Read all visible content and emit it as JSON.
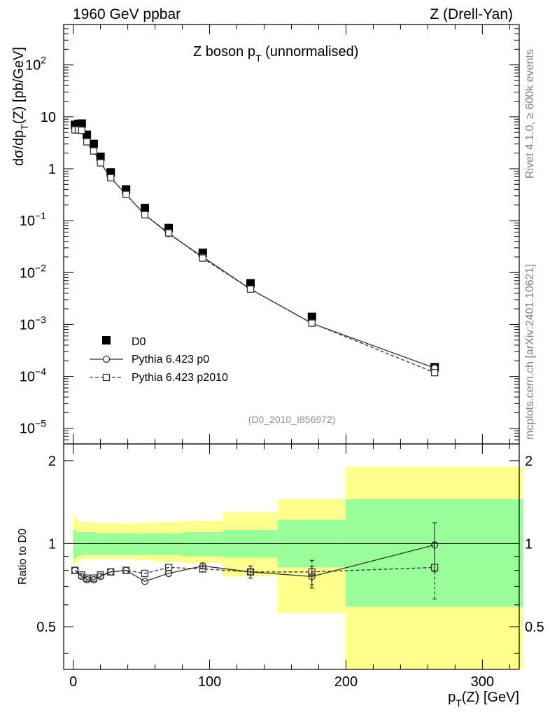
{
  "header": {
    "left": "1960 GeV ppbar",
    "right": "Z (Drell-Yan)"
  },
  "side_labels": {
    "top": "Rivet 4.1.0, ≥ 600k events",
    "bottom": "mcplots.cern.ch [arXiv:2401.10621]"
  },
  "chart_data": [
    {
      "type": "scatter",
      "panel": "main",
      "title": {
        "main": "Z boson p",
        "sub": "T",
        "rest": " (unnormalised)"
      },
      "ylabel": {
        "p1": "dσ/dp",
        "sub": "T",
        "p2": "(Z) [pb/GeV]"
      },
      "yscale": "log",
      "ylim": [
        5e-06,
        600
      ],
      "xlim": [
        -7,
        327
      ],
      "y_ticks": [
        {
          "value": 1e-05,
          "label": "10",
          "exp": "−5"
        },
        {
          "value": 0.0001,
          "label": "10",
          "exp": "−4"
        },
        {
          "value": 0.001,
          "label": "10",
          "exp": "−3"
        },
        {
          "value": 0.01,
          "label": "10",
          "exp": "−2"
        },
        {
          "value": 0.1,
          "label": "10",
          "exp": "−1"
        },
        {
          "value": 1,
          "label": "1",
          "exp": ""
        },
        {
          "value": 10,
          "label": "10",
          "exp": ""
        },
        {
          "value": 100,
          "label": "10",
          "exp": "2"
        }
      ],
      "annotation": "(D0_2010_I856972)",
      "legend": [
        "D0",
        "Pythia 6.423 p0",
        "Pythia 6.423 p2010"
      ],
      "legend_position": "lower-left",
      "series": [
        {
          "name": "D0",
          "style": "filled-square",
          "x": [
            1.25,
            3.75,
            6.25,
            10.0,
            15.0,
            20.0,
            27.5,
            38.75,
            52.5,
            70.0,
            95.0,
            130.0,
            175.0,
            265.0
          ],
          "y": [
            7.0,
            7.3,
            7.4,
            4.5,
            3.0,
            1.7,
            0.85,
            0.4,
            0.175,
            0.072,
            0.024,
            0.0062,
            0.0014,
            0.00015
          ]
        },
        {
          "name": "Pythia 6.423 p0",
          "style": "solid-line-open-circle",
          "x": [
            1.25,
            3.75,
            6.25,
            10.0,
            15.0,
            20.0,
            27.5,
            38.75,
            52.5,
            70.0,
            95.0,
            130.0,
            175.0,
            265.0
          ],
          "y": [
            5.6,
            5.6,
            5.5,
            3.3,
            2.2,
            1.3,
            0.67,
            0.32,
            0.13,
            0.056,
            0.02,
            0.0048,
            0.00105,
            0.000145
          ]
        },
        {
          "name": "Pythia 6.423 p2010",
          "style": "dashed-line-open-square",
          "x": [
            1.25,
            3.75,
            6.25,
            10.0,
            15.0,
            20.0,
            27.5,
            38.75,
            52.5,
            70.0,
            95.0,
            130.0,
            175.0,
            265.0
          ],
          "y": [
            5.6,
            5.6,
            5.5,
            3.3,
            2.2,
            1.3,
            0.67,
            0.32,
            0.13,
            0.058,
            0.019,
            0.0048,
            0.00106,
            0.000118
          ]
        }
      ]
    },
    {
      "type": "scatter",
      "panel": "ratio",
      "ylabel": "Ratio to D0",
      "xlabel": {
        "p1": "p",
        "sub": "T",
        "p2": "(Z) [GeV]"
      },
      "yscale": "log",
      "ylim": [
        0.35,
        2.3
      ],
      "xlim": [
        -7,
        327
      ],
      "y_ticks": [
        {
          "value": 0.5,
          "label": "0.5"
        },
        {
          "value": 1,
          "label": "1"
        },
        {
          "value": 2,
          "label": "2"
        }
      ],
      "x_ticks": [
        0,
        100,
        200,
        300
      ],
      "reference_line": 1,
      "bands": [
        {
          "x0": 0.0,
          "x1": 2.5,
          "inner": [
            0.885,
            1.12
          ],
          "outer": [
            0.83,
            1.27
          ]
        },
        {
          "x0": 2.5,
          "x1": 5.0,
          "inner": [
            0.9,
            1.1
          ],
          "outer": [
            0.86,
            1.22
          ]
        },
        {
          "x0": 5.0,
          "x1": 7.5,
          "inner": [
            0.91,
            1.1
          ],
          "outer": [
            0.87,
            1.2
          ]
        },
        {
          "x0": 7.5,
          "x1": 12.5,
          "inner": [
            0.91,
            1.1
          ],
          "outer": [
            0.88,
            1.2
          ]
        },
        {
          "x0": 12.5,
          "x1": 17.5,
          "inner": [
            0.91,
            1.1
          ],
          "outer": [
            0.88,
            1.19
          ]
        },
        {
          "x0": 17.5,
          "x1": 22.5,
          "inner": [
            0.91,
            1.09
          ],
          "outer": [
            0.88,
            1.19
          ]
        },
        {
          "x0": 22.5,
          "x1": 32.5,
          "inner": [
            0.91,
            1.09
          ],
          "outer": [
            0.88,
            1.19
          ]
        },
        {
          "x0": 32.5,
          "x1": 45.0,
          "inner": [
            0.91,
            1.09
          ],
          "outer": [
            0.88,
            1.18
          ]
        },
        {
          "x0": 45.0,
          "x1": 60.0,
          "inner": [
            0.91,
            1.09
          ],
          "outer": [
            0.87,
            1.19
          ]
        },
        {
          "x0": 60.0,
          "x1": 80.0,
          "inner": [
            0.91,
            1.09
          ],
          "outer": [
            0.86,
            1.2
          ]
        },
        {
          "x0": 80.0,
          "x1": 110.0,
          "inner": [
            0.9,
            1.1
          ],
          "outer": [
            0.85,
            1.21
          ]
        },
        {
          "x0": 110.0,
          "x1": 150.0,
          "inner": [
            0.89,
            1.12
          ],
          "outer": [
            0.76,
            1.3
          ]
        },
        {
          "x0": 150.0,
          "x1": 200.0,
          "inner": [
            0.82,
            1.22
          ],
          "outer": [
            0.56,
            1.45
          ]
        },
        {
          "x0": 200.0,
          "x1": 330.0,
          "inner": [
            0.59,
            1.45
          ],
          "outer": [
            0.33,
            1.9
          ]
        }
      ],
      "series": [
        {
          "name": "Pythia 6.423 p0",
          "style": "solid-line-open-circle",
          "x": [
            1.25,
            6.25,
            10.0,
            15.0,
            20.0,
            27.5,
            38.75,
            52.5,
            70.0,
            95.0,
            130.0,
            175.0,
            265.0
          ],
          "y": [
            0.8,
            0.76,
            0.74,
            0.74,
            0.76,
            0.79,
            0.8,
            0.73,
            0.78,
            0.83,
            0.79,
            0.76,
            0.99
          ],
          "err": [
            0,
            0,
            0,
            0,
            0,
            0,
            0,
            0,
            0,
            0.02,
            0.04,
            0.07,
            0.2
          ]
        },
        {
          "name": "Pythia 6.423 p2010",
          "style": "dashed-line-open-square",
          "x": [
            1.25,
            6.25,
            10.0,
            15.0,
            20.0,
            27.5,
            38.75,
            52.5,
            70.0,
            95.0,
            130.0,
            175.0,
            265.0
          ],
          "y": [
            0.8,
            0.77,
            0.75,
            0.75,
            0.77,
            0.79,
            0.8,
            0.78,
            0.82,
            0.81,
            0.79,
            0.79,
            0.82
          ],
          "err": [
            0,
            0,
            0,
            0,
            0,
            0,
            0,
            0,
            0,
            0.02,
            0.04,
            0.08,
            0.19
          ]
        }
      ]
    }
  ]
}
